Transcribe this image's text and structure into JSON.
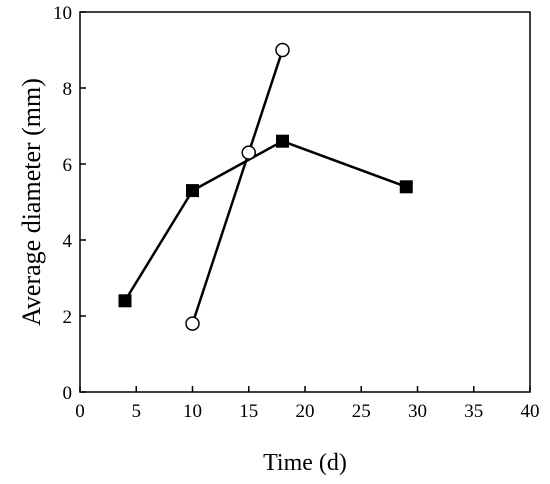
{
  "chart_data": {
    "type": "line",
    "title": "",
    "xlabel": "Time (d)",
    "ylabel": "Average diameter (mm)",
    "xlim": [
      0,
      40
    ],
    "ylim": [
      0,
      10
    ],
    "x_ticks": [
      0,
      5,
      10,
      15,
      20,
      25,
      30,
      35,
      40
    ],
    "y_ticks": [
      0,
      2,
      4,
      6,
      8,
      10
    ],
    "grid": false,
    "legend": "none",
    "series": [
      {
        "marker": "square-filled",
        "color": "#000000",
        "points": [
          {
            "x": 4,
            "y": 2.4
          },
          {
            "x": 10,
            "y": 5.3
          },
          {
            "x": 18,
            "y": 6.6
          },
          {
            "x": 29,
            "y": 5.4
          }
        ]
      },
      {
        "marker": "circle-open",
        "color": "#000000",
        "points": [
          {
            "x": 10,
            "y": 1.8
          },
          {
            "x": 15,
            "y": 6.3
          },
          {
            "x": 18,
            "y": 9.0
          }
        ]
      }
    ]
  }
}
